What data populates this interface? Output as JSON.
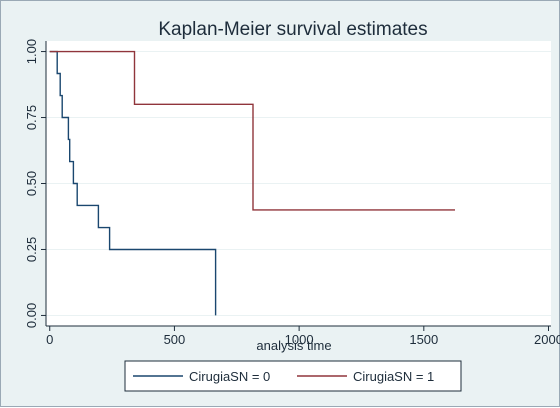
{
  "chart_data": {
    "type": "line",
    "step": true,
    "title": "Kaplan-Meier survival estimates",
    "xlabel": "analysis time",
    "ylabel": "",
    "xlim": [
      -15,
      2010
    ],
    "ylim": [
      -0.04,
      1.04
    ],
    "xticks": [
      0,
      500,
      1000,
      1500,
      2000
    ],
    "xtick_labels": [
      "0",
      "500",
      "1000",
      "1500",
      "2000"
    ],
    "yticks": [
      0,
      0.25,
      0.5,
      0.75,
      1
    ],
    "ytick_labels": [
      "0.00",
      "0.25",
      "0.50",
      "0.75",
      "1.00"
    ],
    "grid": "horizontal",
    "legend_position": "bottom",
    "series": [
      {
        "name": "CirugiaSN = 0",
        "color": "#1a476f",
        "points": [
          [
            0,
            1
          ],
          [
            30,
            1
          ],
          [
            30,
            0.917
          ],
          [
            42,
            0.917
          ],
          [
            42,
            0.833
          ],
          [
            50,
            0.833
          ],
          [
            50,
            0.75
          ],
          [
            75,
            0.75
          ],
          [
            75,
            0.667
          ],
          [
            80,
            0.667
          ],
          [
            80,
            0.583
          ],
          [
            95,
            0.583
          ],
          [
            95,
            0.5
          ],
          [
            110,
            0.5
          ],
          [
            110,
            0.417
          ],
          [
            195,
            0.417
          ],
          [
            195,
            0.333
          ],
          [
            240,
            0.333
          ],
          [
            240,
            0.25
          ],
          [
            665,
            0.25
          ],
          [
            665,
            0
          ]
        ]
      },
      {
        "name": "CirugiaSN = 1",
        "color": "#90353b",
        "points": [
          [
            0,
            1
          ],
          [
            340,
            1
          ],
          [
            340,
            0.8
          ],
          [
            815,
            0.8
          ],
          [
            815,
            0.4
          ],
          [
            1625,
            0.4
          ]
        ]
      }
    ]
  }
}
